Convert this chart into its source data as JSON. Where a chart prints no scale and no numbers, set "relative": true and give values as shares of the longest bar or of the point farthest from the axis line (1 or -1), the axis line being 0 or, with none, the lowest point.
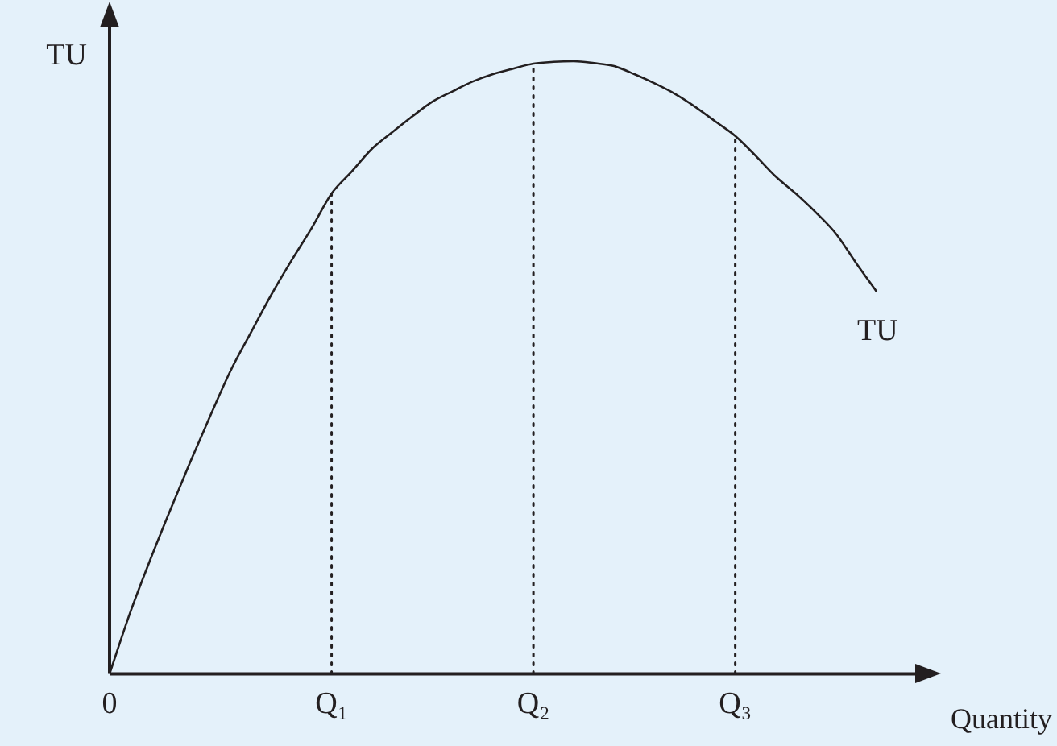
{
  "chart_data": {
    "type": "line",
    "relative": true,
    "xlabel": "Quantity",
    "ylabel": "TU",
    "categories": [
      "0",
      null,
      null,
      null,
      null,
      null,
      null,
      null,
      null,
      null,
      null,
      "Q₁",
      null,
      null,
      null,
      null,
      null,
      null,
      null,
      null,
      null,
      "Q₂",
      null,
      null,
      null,
      null,
      null,
      null,
      null,
      null,
      null,
      "Q₃",
      null,
      null,
      null,
      null,
      null,
      null,
      null
    ],
    "series": [
      {
        "name": "TU",
        "color": "#231f20",
        "values": [
          0,
          0.098,
          0.185,
          0.267,
          0.346,
          0.422,
          0.495,
          0.557,
          0.618,
          0.674,
          0.727,
          0.784,
          0.82,
          0.857,
          0.884,
          0.91,
          0.934,
          0.951,
          0.967,
          0.979,
          0.988,
          0.996,
          0.999,
          1.0,
          0.997,
          0.992,
          0.979,
          0.964,
          0.947,
          0.926,
          0.902,
          0.878,
          0.846,
          0.812,
          0.784,
          0.753,
          0.718,
          0.67,
          0.624
        ]
      }
    ],
    "ref_lines": [
      {
        "axis": "x",
        "value": "Q₁",
        "line_style": "dotted",
        "color": "#231f20"
      },
      {
        "axis": "x",
        "value": "Q₂",
        "line_style": "dotted",
        "color": "#231f20"
      },
      {
        "axis": "x",
        "value": "Q₃",
        "line_style": "dotted",
        "color": "#231f20"
      }
    ],
    "grid": false,
    "legend": false,
    "marker": "none",
    "line_style": "solid",
    "tick_labels": "x"
  }
}
